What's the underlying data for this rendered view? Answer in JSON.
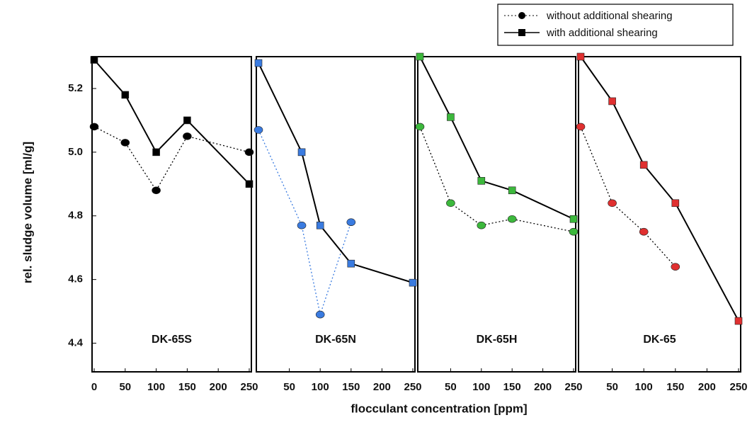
{
  "ylabel": "rel. sludge volume [ml/g]",
  "xlabel": "flocculant concentration [ppm]",
  "chart_data": [
    {
      "type": "line",
      "title": "DK-65S",
      "xlim": [
        0,
        250
      ],
      "xticks": [
        0,
        50,
        100,
        150,
        200,
        250
      ],
      "ylim": [
        4.31,
        5.3
      ],
      "yticks": [
        4.4,
        4.6,
        4.8,
        {
          "value": 5,
          "label": "5.0"
        },
        5.2
      ],
      "series": [
        {
          "name": "without additional shearing",
          "color": "#000000",
          "line_color": "#000000",
          "marker": "circle",
          "dashed": true,
          "x": [
            0,
            50,
            100,
            150,
            250
          ],
          "values": [
            5.08,
            5.03,
            4.88,
            5.05,
            5.0
          ]
        },
        {
          "name": "with additional shearing",
          "color": "#000000",
          "line_color": "#000000",
          "marker": "square",
          "dashed": false,
          "x": [
            0,
            50,
            100,
            150,
            250
          ],
          "values": [
            5.29,
            5.18,
            5.0,
            5.1,
            4.9
          ]
        }
      ]
    },
    {
      "type": "line",
      "title": "DK-65N",
      "xlim": [
        0,
        250
      ],
      "xticks": [
        50,
        100,
        150,
        200,
        250
      ],
      "ylim": [
        4.31,
        5.3
      ],
      "series": [
        {
          "name": "without additional shearing",
          "color": "#3a7be0",
          "line_color": "#3a7be0",
          "marker": "circle",
          "dashed": true,
          "x": [
            0,
            70,
            100,
            150
          ],
          "values": [
            5.07,
            4.77,
            4.49,
            4.78
          ]
        },
        {
          "name": "with additional shearing",
          "color": "#3a7be0",
          "line_color": "#000000",
          "marker": "square",
          "dashed": false,
          "x": [
            0,
            70,
            100,
            150,
            250
          ],
          "values": [
            5.28,
            5.0,
            4.77,
            4.65,
            4.59
          ]
        }
      ]
    },
    {
      "type": "line",
      "title": "DK-65H",
      "xlim": [
        0,
        250
      ],
      "xticks": [
        50,
        100,
        150,
        200,
        250
      ],
      "ylim": [
        4.31,
        5.3
      ],
      "series": [
        {
          "name": "without additional shearing",
          "color": "#3cb83c",
          "line_color": "#000000",
          "marker": "circle",
          "dashed": true,
          "x": [
            0,
            50,
            100,
            150,
            250
          ],
          "values": [
            5.08,
            4.84,
            4.77,
            4.79,
            4.75
          ]
        },
        {
          "name": "with additional shearing",
          "color": "#3cb83c",
          "line_color": "#000000",
          "marker": "square",
          "dashed": false,
          "x": [
            0,
            50,
            100,
            150,
            250
          ],
          "values": [
            5.3,
            5.11,
            4.91,
            4.88,
            4.79
          ]
        }
      ]
    },
    {
      "type": "line",
      "title": "DK-65",
      "xlim": [
        0,
        250
      ],
      "xticks": [
        50,
        100,
        150,
        200,
        250
      ],
      "ylim": [
        4.31,
        5.3
      ],
      "series": [
        {
          "name": "without additional shearing",
          "color": "#e03030",
          "line_color": "#000000",
          "marker": "circle",
          "dashed": true,
          "x": [
            0,
            50,
            100,
            150
          ],
          "values": [
            5.08,
            4.84,
            4.75,
            4.64
          ]
        },
        {
          "name": "with additional shearing",
          "color": "#e03030",
          "line_color": "#000000",
          "marker": "square",
          "dashed": false,
          "x": [
            0,
            50,
            100,
            150,
            250
          ],
          "values": [
            5.3,
            5.16,
            4.96,
            4.84,
            4.47
          ]
        }
      ]
    }
  ]
}
